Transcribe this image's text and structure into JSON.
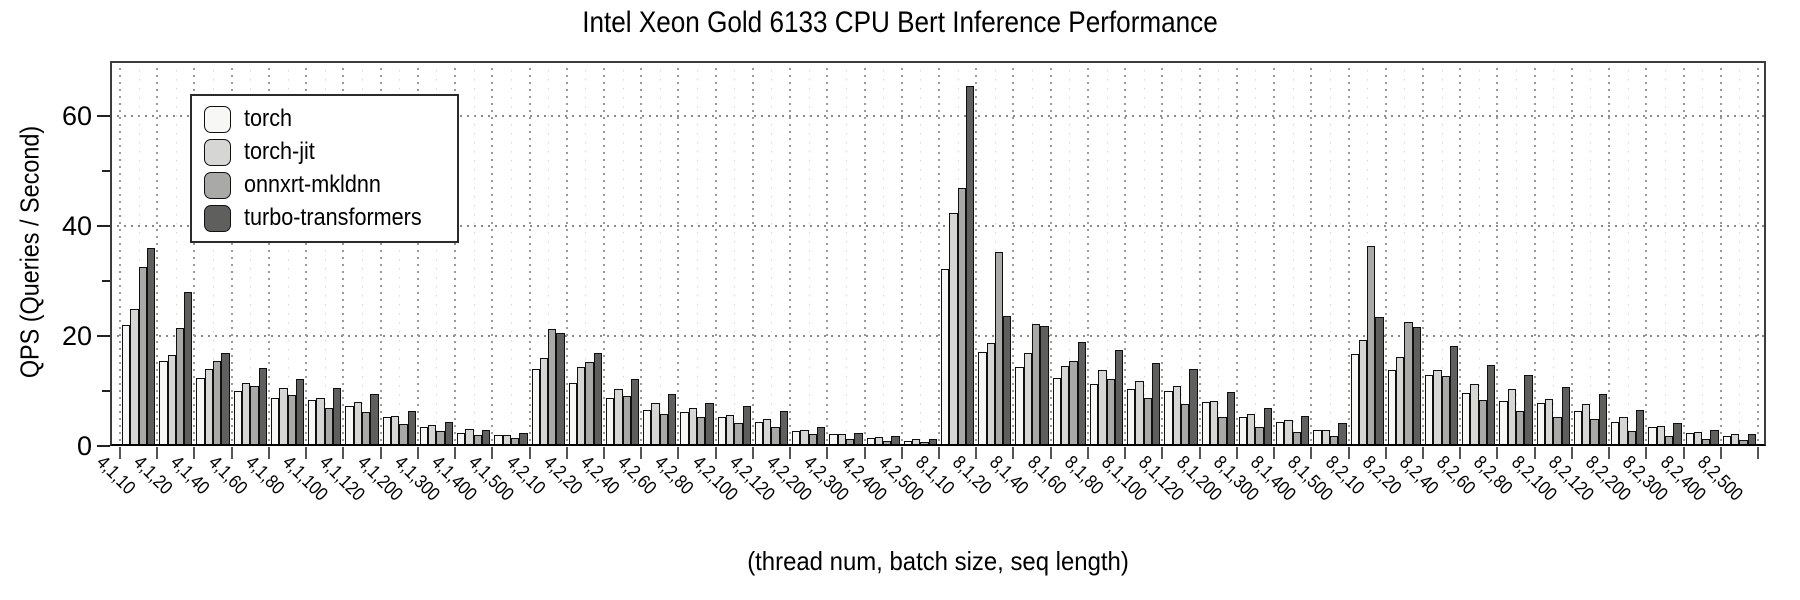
{
  "chart_data": {
    "type": "bar",
    "title": "Intel Xeon Gold 6133 CPU Bert Inference Performance",
    "xlabel": "(thread num, batch size, seq length)",
    "ylabel": "QPS (Queries / Second)",
    "ylim": [
      0,
      70
    ],
    "yticks_major": [
      0,
      20,
      40,
      60
    ],
    "yticks_minor": [
      10,
      30,
      50
    ],
    "grid": "dotted horizontal lines at major yticks, dotted vertical lines at cluster boundaries",
    "legend_position": "upper left",
    "categories": [
      "4,1,10",
      "4,1,20",
      "4,1,40",
      "4,1,60",
      "4,1,80",
      "4,1,100",
      "4,1,120",
      "4,1,200",
      "4,1,300",
      "4,1,400",
      "4,1,500",
      "4,2,10",
      "4,2,20",
      "4,2,40",
      "4,2,60",
      "4,2,80",
      "4,2,100",
      "4,2,120",
      "4,2,200",
      "4,2,300",
      "4,2,400",
      "4,2,500",
      "8,1,10",
      "8,1,20",
      "8,1,40",
      "8,1,60",
      "8,1,80",
      "8,1,100",
      "8,1,120",
      "8,1,200",
      "8,1,300",
      "8,1,400",
      "8,1,500",
      "8,2,10",
      "8,2,20",
      "8,2,40",
      "8,2,60",
      "8,2,80",
      "8,2,100",
      "8,2,120",
      "8,2,200",
      "8,2,300",
      "8,2,400",
      "8,2,500"
    ],
    "series": [
      {
        "name": "torch",
        "color": "#f7f7f5",
        "values": [
          22,
          15.5,
          12.3,
          10,
          8.7,
          8.3,
          7.3,
          5.2,
          3.5,
          2.4,
          2.0,
          14,
          11.4,
          8.8,
          6.6,
          6.2,
          5.2,
          4.3,
          2.8,
          2.1,
          1.5,
          0.9,
          32.2,
          17.1,
          14.3,
          12.4,
          11.3,
          10.4,
          10.0,
          8.0,
          5.3,
          4.4,
          3.0,
          16.8,
          13.8,
          13.0,
          9.7,
          8.2,
          7.9,
          6.4,
          4.4,
          3.5,
          2.4,
          1.9
        ]
      },
      {
        "name": "torch-jit",
        "color": "#d6d6d4",
        "values": [
          25,
          16.5,
          14,
          11.5,
          10.6,
          8.8,
          8.0,
          5.5,
          3.8,
          3.1,
          2.0,
          16,
          14.4,
          10.3,
          7.8,
          6.9,
          5.7,
          5.0,
          3.0,
          2.1,
          1.6,
          1.2,
          42.3,
          18.8,
          16.9,
          14.5,
          13.9,
          11.8,
          10.9,
          8.1,
          5.8,
          4.7,
          3.0,
          19.2,
          16.2,
          13.8,
          11.2,
          10.3,
          8.6,
          7.7,
          5.3,
          3.6,
          2.5,
          2.1
        ]
      },
      {
        "name": "onnxrt-mkldnn",
        "color": "#a9a9a7",
        "values": [
          32.5,
          21.5,
          15.5,
          11,
          9.3,
          7.0,
          6.2,
          4.0,
          2.7,
          2.0,
          1.5,
          21.2,
          15.3,
          9.1,
          5.9,
          5.2,
          4.2,
          3.5,
          2.1,
          1.3,
          0.9,
          0.7,
          46.9,
          35.2,
          22.2,
          15.4,
          12.1,
          8.8,
          7.6,
          5.3,
          3.5,
          2.5,
          1.8,
          36.4,
          22.6,
          12.7,
          8.3,
          6.4,
          5.3,
          4.9,
          2.7,
          1.9,
          1.2,
          1.1
        ]
      },
      {
        "name": "turbo-transformers",
        "color": "#5f5f5d",
        "values": [
          36,
          28,
          17,
          14.2,
          12.2,
          10.6,
          9.5,
          6.4,
          4.3,
          3.0,
          2.3,
          20.5,
          17.0,
          12.2,
          9.5,
          7.8,
          7.3,
          6.3,
          3.4,
          2.3,
          1.8,
          1.2,
          65.4,
          23.7,
          21.8,
          18.9,
          17.4,
          15.1,
          14.0,
          9.9,
          6.9,
          5.5,
          4.1,
          23.5,
          21.6,
          18.1,
          14.8,
          12.9,
          10.8,
          9.5,
          6.5,
          4.1,
          3.0,
          2.2
        ]
      }
    ]
  }
}
